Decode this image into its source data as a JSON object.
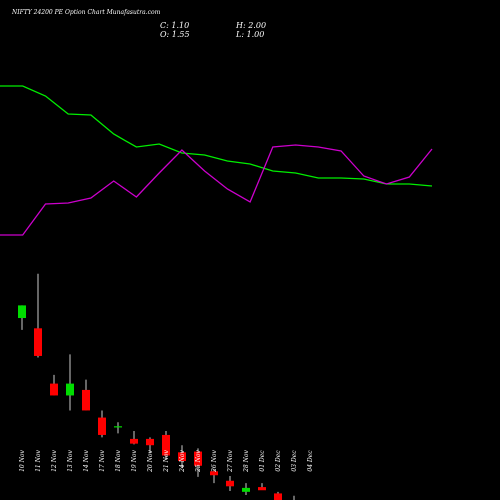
{
  "header": {
    "title": "NIFTY 24200  PE Option  Chart Munafasutra.com",
    "close_label": "C: 1.10",
    "high_label": "H: 2.00",
    "open_label": "O: 1.55",
    "low_label": "L: 1.00"
  },
  "colors": {
    "background": "#000000",
    "up_candle": "#00dd00",
    "down_candle": "#ff0000",
    "line_green": "#00ee00",
    "line_magenta": "#cc00cc",
    "text": "#ffffff"
  },
  "chart_data": [
    {
      "type": "line",
      "x": [
        "",
        "",
        "",
        "",
        "",
        "",
        "",
        "",
        "",
        "",
        "",
        "",
        "",
        "",
        "",
        "",
        "",
        "",
        "",
        ""
      ],
      "series": [
        {
          "color": "#00ee00",
          "values": [
            86,
            86,
            96,
            114,
            115,
            134,
            147,
            144,
            153,
            155,
            161,
            164,
            171,
            173,
            178,
            178,
            179,
            184,
            184,
            186
          ]
        },
        {
          "color": "#cc00cc",
          "values": [
            235,
            235,
            204,
            203,
            198,
            181,
            197,
            173,
            150,
            171,
            189,
            202,
            147,
            145,
            147,
            151,
            176,
            184,
            177,
            149
          ]
        }
      ],
      "ylim": [
        0,
        250
      ],
      "note": "indicator panel; values are relative plot levels (no axis scale printed)"
    },
    {
      "type": "candlestick",
      "categories": [
        "10 Nov",
        "11 Nov",
        "12 Nov",
        "13 Nov",
        "14 Nov",
        "17 Nov",
        "18 Nov",
        "19 Nov",
        "20 Nov",
        "21 Nov",
        "24 Nov",
        "25 Nov",
        "26 Nov",
        "27 Nov",
        "28 Nov",
        "01 Dec",
        "02 Dec",
        "03 Dec",
        "04 Dec"
      ],
      "candles": [
        {
          "o": 18.6,
          "h": 20.2,
          "l": 17.1,
          "c": 20.2
        },
        {
          "o": 17.3,
          "h": 24.2,
          "l": 13.6,
          "c": 13.8
        },
        {
          "o": 10.3,
          "h": 11.4,
          "l": 8.8,
          "c": 8.8
        },
        {
          "o": 8.8,
          "h": 14.0,
          "l": 6.9,
          "c": 10.3
        },
        {
          "o": 9.5,
          "h": 10.8,
          "l": 6.9,
          "c": 6.9
        },
        {
          "o": 6.0,
          "h": 6.9,
          "l": 3.5,
          "c": 3.8
        },
        {
          "o": 4.9,
          "h": 5.4,
          "l": 4.0,
          "c": 4.9
        },
        {
          "o": 3.3,
          "h": 4.3,
          "l": 2.6,
          "c": 2.7
        },
        {
          "o": 3.3,
          "h": 3.5,
          "l": 1.5,
          "c": 2.5
        },
        {
          "o": 3.8,
          "h": 4.3,
          "l": 0.7,
          "c": 1.2
        },
        {
          "o": 1.6,
          "h": 2.5,
          "l": -0.4,
          "c": 0.5
        },
        {
          "o": 1.7,
          "h": 2.1,
          "l": -1.5,
          "c": -0.1
        },
        {
          "o": -0.8,
          "h": -0.5,
          "l": -2.3,
          "c": -1.3
        },
        {
          "o": -2.0,
          "h": -1.4,
          "l": -3.3,
          "c": -2.7
        },
        {
          "o": -3.4,
          "h": -2.3,
          "l": -3.8,
          "c": -2.9
        },
        {
          "o": -2.8,
          "h": -2.3,
          "l": -3.1,
          "c": -3.2
        },
        {
          "o": -3.6,
          "h": -3.4,
          "l": -4.9,
          "c": -4.6
        },
        {
          "o": -4.6,
          "h": -3.9,
          "l": -5.6,
          "c": -4.6
        },
        {
          "o": -5.1,
          "h": -4.6,
          "l": -6.0,
          "c": -5.9
        }
      ],
      "note": "candle price levels are relative plot units (no price axis printed)"
    }
  ]
}
